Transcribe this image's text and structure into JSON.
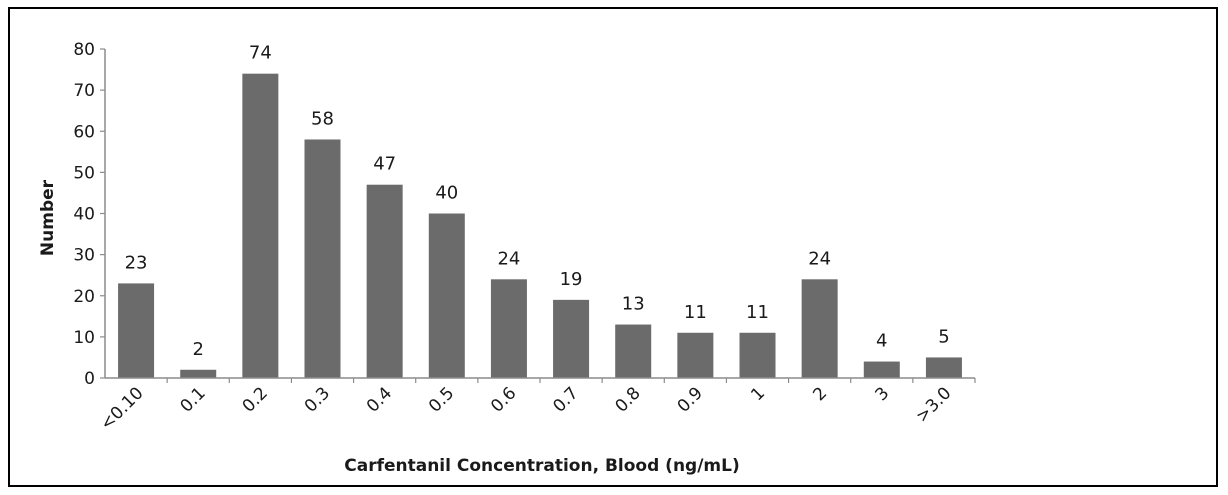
{
  "chart_data": {
    "type": "bar",
    "title": "",
    "xlabel": "Carfentanil Concentration, Blood (ng/mL)",
    "ylabel": "Number",
    "ylim": [
      0,
      80
    ],
    "yticks": [
      "0",
      "10",
      "20",
      "30",
      "40",
      "50",
      "60",
      "70",
      "80"
    ],
    "categories": [
      "<0.10",
      "0.1",
      "0.2",
      "0.3",
      "0.4",
      "0.5",
      "0.6",
      "0.7",
      "0.8",
      "0.9",
      "1",
      "2",
      "3",
      ">3.0"
    ],
    "values": [
      23,
      2,
      74,
      58,
      47,
      40,
      24,
      19,
      13,
      11,
      11,
      24,
      4,
      5
    ],
    "value_labels": [
      "23",
      "2",
      "74",
      "58",
      "47",
      "40",
      "24",
      "19",
      "13",
      "11",
      "11",
      "24",
      "4",
      "5"
    ],
    "grid": false,
    "legend": "none",
    "bar_color": "#6b6b6b",
    "axis_color": "#8c8c8c"
  }
}
